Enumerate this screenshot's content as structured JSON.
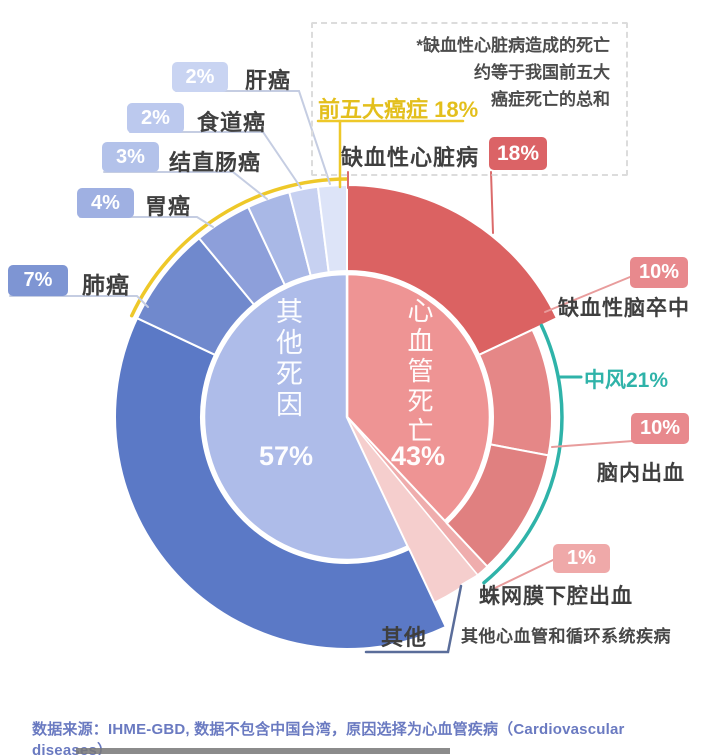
{
  "chart_data": {
    "type": "pie",
    "subtype": "two_level_donut",
    "units": "%",
    "inner_ring": [
      {
        "label": "心血管死亡",
        "value": 43,
        "display": "43%",
        "color": "#ee9494"
      },
      {
        "label": "其他死因",
        "value": 57,
        "display": "57%",
        "color": "#aebce9"
      }
    ],
    "outer_ring": [
      {
        "label": "缺血性心脏病",
        "value": 18,
        "display": "18%",
        "color": "#db6262",
        "badge_color": "#db6366"
      },
      {
        "label": "缺血性脑卒中",
        "value": 10,
        "display": "10%",
        "color": "#e58787",
        "badge_color": "#e8898d"
      },
      {
        "label": "脑内出血",
        "value": 10,
        "display": "10%",
        "color": "#e08080",
        "badge_color": "#e8898d"
      },
      {
        "label": "蛛网膜下腔出血",
        "value": 1,
        "display": "1%",
        "color": "#efadad",
        "badge_color": "#efa9a9"
      },
      {
        "label": "其他心血管和循环系统疾病",
        "value": 4,
        "display": "",
        "color": "#f5cecd",
        "badge_color": ""
      },
      {
        "label": "其他",
        "value": 39,
        "display": "",
        "color": "#5b79c6",
        "badge_color": ""
      },
      {
        "label": "肺癌",
        "value": 7,
        "display": "7%",
        "color": "#7089cd",
        "badge_color": "#7e95d3"
      },
      {
        "label": "胃癌",
        "value": 4,
        "display": "4%",
        "color": "#8d9fda",
        "badge_color": "#9fb0e2"
      },
      {
        "label": "结直肠癌",
        "value": 3,
        "display": "3%",
        "color": "#a9b8e6",
        "badge_color": "#b3c2ea"
      },
      {
        "label": "食道癌",
        "value": 2,
        "display": "2%",
        "color": "#c7d1f1",
        "badge_color": "#bcc9ee"
      },
      {
        "label": "肝癌",
        "value": 2,
        "display": "2%",
        "color": "#dde4f8",
        "badge_color": "#c9d4f2"
      }
    ],
    "brackets": [
      {
        "label": "前五大癌症 18%",
        "value": 18,
        "color": "#eec829",
        "covers": [
          "肺癌",
          "胃癌",
          "结直肠癌",
          "食道癌",
          "肝癌"
        ]
      },
      {
        "label": "中风21%",
        "value": 21,
        "color": "#2fb3a9",
        "covers": [
          "缺血性脑卒中",
          "脑内出血",
          "蛛网膜下腔出血"
        ]
      }
    ],
    "annotation": {
      "line1": "*缺血性心脏病造成的死亡",
      "line2": "约等于我国前五大",
      "line3": "癌症死亡的总和"
    },
    "source": "数据来源：IHME-GBD, 数据不包含中国台湾，原因选择为心血管疾病（Cardiovascular diseases）"
  }
}
